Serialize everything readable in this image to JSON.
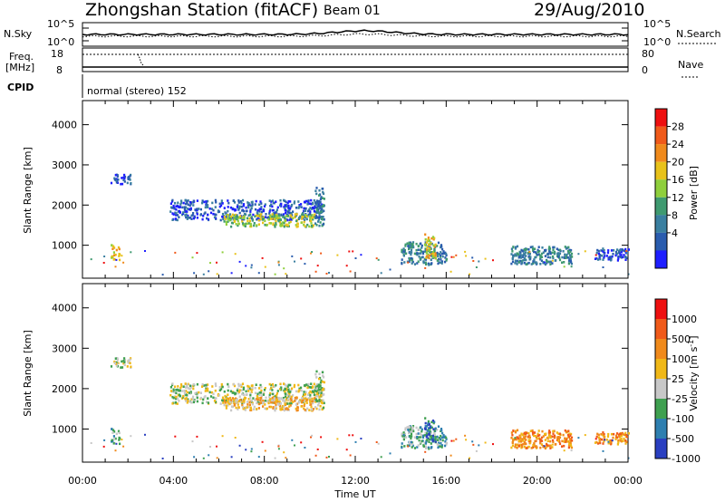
{
  "header": {
    "station": "Zhongshan Station (fitACF)",
    "beam": "Beam 01",
    "date": "29/Aug/2010"
  },
  "noise_panel": {
    "left_label": "N.Sky",
    "left_ticks": [
      "10^5",
      "10^0"
    ],
    "right_label": "N.Search",
    "right_ticks": [
      "10^5",
      "10^0"
    ]
  },
  "freq_panel": {
    "left_label_1": "Freq.",
    "left_label_2": "[MHz]",
    "left_ticks": [
      "18",
      "8"
    ],
    "right_label": "Nave",
    "right_ticks": [
      "80",
      "0"
    ]
  },
  "cpid": {
    "label": "CPID",
    "value": "normal (stereo) 152"
  },
  "colors": {
    "power": [
      "#1e1eff",
      "#2a5cae",
      "#3a7fa0",
      "#3f9a70",
      "#8fcf3c",
      "#e8c21a",
      "#f08a1c",
      "#f05a1a",
      "#ee1010"
    ],
    "velocity": [
      "#2a3fc0",
      "#2e7fb0",
      "#3fa050",
      "#c8c8c8",
      "#f0b818",
      "#f08a1c",
      "#f05a1a",
      "#ee1010"
    ]
  },
  "chart_data": [
    {
      "type": "heatmap",
      "name": "power",
      "xlabel": "",
      "ylabel": "Slant Range [km]",
      "x_range_hours": [
        0,
        24
      ],
      "ylim": [
        180,
        4600
      ],
      "y_ticks": [
        "4000",
        "3000",
        "2000",
        "1000"
      ],
      "colorbar": {
        "label": "Power [dB]",
        "ticks": [
          "28",
          "24",
          "20",
          "16",
          "12",
          "8",
          "4"
        ]
      },
      "regions": [
        {
          "t0": 1.2,
          "t1": 1.6,
          "r0": 650,
          "r1": 1050,
          "level": 5
        },
        {
          "t0": 1.2,
          "t1": 2.1,
          "r0": 2550,
          "r1": 2800,
          "level": 1
        },
        {
          "t0": 3.8,
          "t1": 10.6,
          "r0": 1650,
          "r1": 2150,
          "level": 1
        },
        {
          "t0": 6.2,
          "t1": 10.2,
          "r0": 1480,
          "r1": 1800,
          "level": 4
        },
        {
          "t0": 10.2,
          "t1": 10.6,
          "r0": 1500,
          "r1": 2500,
          "level": 2
        },
        {
          "t0": 14.0,
          "t1": 16.0,
          "r0": 550,
          "r1": 1100,
          "level": 2
        },
        {
          "t0": 15.0,
          "t1": 15.5,
          "r0": 700,
          "r1": 1300,
          "level": 5
        },
        {
          "t0": 18.8,
          "t1": 21.5,
          "r0": 550,
          "r1": 1000,
          "level": 2
        },
        {
          "t0": 22.5,
          "t1": 24.0,
          "r0": 650,
          "r1": 950,
          "level": 1
        }
      ]
    },
    {
      "type": "heatmap",
      "name": "velocity",
      "xlabel": "Time UT",
      "ylabel": "Slant Range [km]",
      "x_range_hours": [
        0,
        24
      ],
      "x_ticks": [
        "00:00",
        "04:00",
        "08:00",
        "12:00",
        "16:00",
        "20:00",
        "00:00"
      ],
      "ylim": [
        180,
        4600
      ],
      "y_ticks": [
        "4000",
        "3000",
        "2000",
        "1000"
      ],
      "colorbar": {
        "label": "Velocity [m s",
        "label_exponent": "-1",
        "label_tail": "]",
        "ticks": [
          "1000",
          "500",
          "100",
          "25",
          "-25",
          "-100",
          "-500",
          "-1000"
        ]
      },
      "regions": [
        {
          "t0": 1.2,
          "t1": 1.6,
          "r0": 650,
          "r1": 1050,
          "level": 2
        },
        {
          "t0": 1.2,
          "t1": 2.1,
          "r0": 2550,
          "r1": 2800,
          "level": 3
        },
        {
          "t0": 3.8,
          "t1": 10.6,
          "r0": 1650,
          "r1": 2150,
          "level": 3
        },
        {
          "t0": 6.2,
          "t1": 10.2,
          "r0": 1480,
          "r1": 1800,
          "level": 4
        },
        {
          "t0": 10.2,
          "t1": 10.6,
          "r0": 1500,
          "r1": 2500,
          "level": 3
        },
        {
          "t0": 14.0,
          "t1": 16.0,
          "r0": 550,
          "r1": 1100,
          "level": 2
        },
        {
          "t0": 15.0,
          "t1": 15.5,
          "r0": 700,
          "r1": 1300,
          "level": 1
        },
        {
          "t0": 18.8,
          "t1": 21.5,
          "r0": 550,
          "r1": 1000,
          "level": 5
        },
        {
          "t0": 22.5,
          "t1": 24.0,
          "r0": 650,
          "r1": 950,
          "level": 5
        }
      ]
    }
  ]
}
